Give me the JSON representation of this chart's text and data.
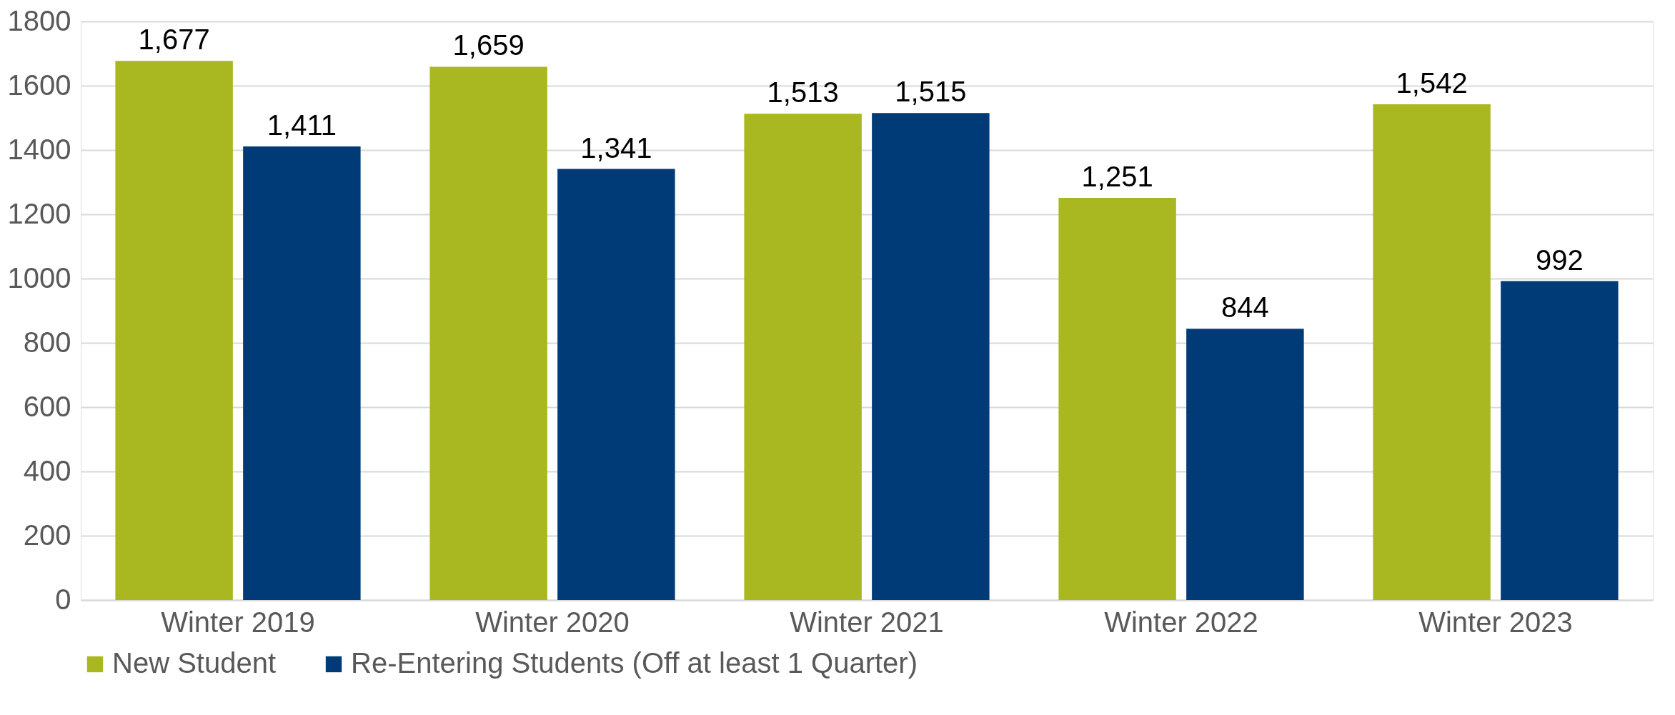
{
  "chart_data": {
    "type": "bar",
    "categories": [
      "Winter 2019",
      "Winter 2020",
      "Winter 2021",
      "Winter 2022",
      "Winter 2023"
    ],
    "series": [
      {
        "name": "New Student",
        "color": "#a9b820",
        "values": [
          1677,
          1659,
          1513,
          1251,
          1542
        ],
        "value_labels": [
          "1,677",
          "1,659",
          "1,513",
          "1,251",
          "1,542"
        ]
      },
      {
        "name": "Re-Entering Students (Off at least 1 Quarter)",
        "color": "#003b78",
        "values": [
          1411,
          1341,
          1515,
          844,
          992
        ],
        "value_labels": [
          "1,411",
          "1,341",
          "1,515",
          "844",
          "992"
        ]
      }
    ],
    "ylim": [
      0,
      1800
    ],
    "yticks": [
      0,
      200,
      400,
      600,
      800,
      1000,
      1200,
      1400,
      1600,
      1800
    ],
    "grid": "y",
    "legend": "bottom"
  }
}
